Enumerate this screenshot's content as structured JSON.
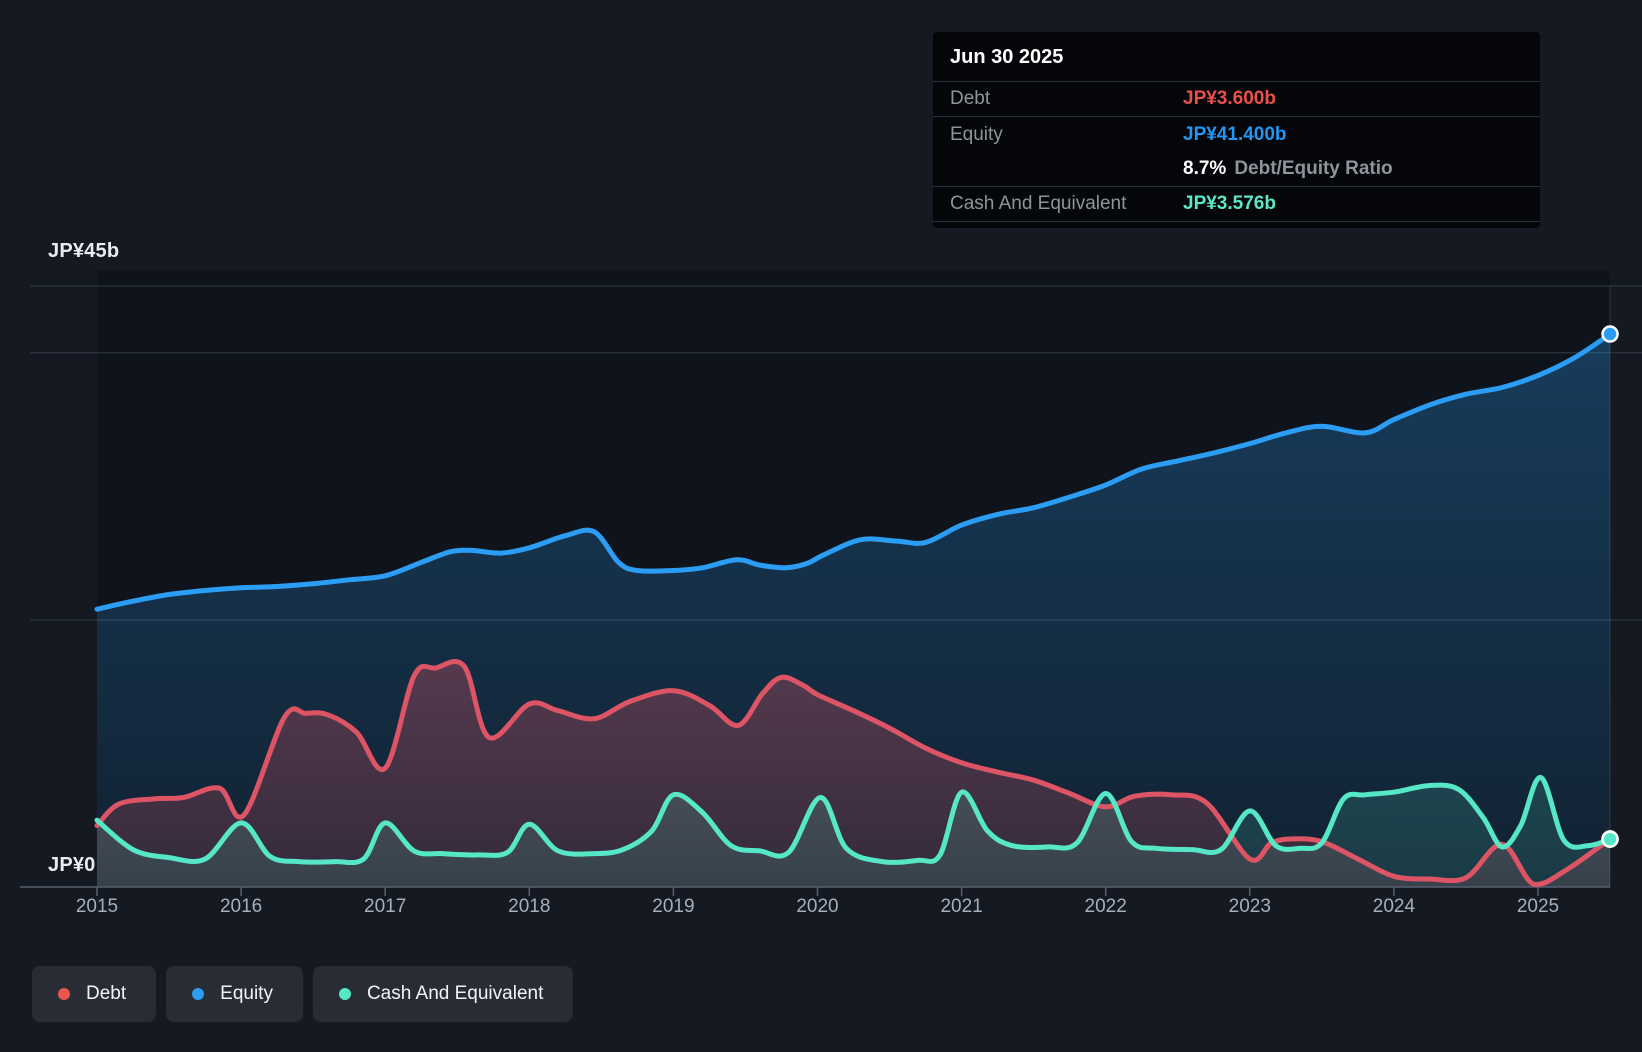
{
  "y_axis": {
    "top_label": "JP¥45b",
    "zero_label": "JP¥0"
  },
  "x_axis": {
    "tick_labels": [
      "2015",
      "2016",
      "2017",
      "2018",
      "2019",
      "2020",
      "2021",
      "2022",
      "2023",
      "2024",
      "2025"
    ]
  },
  "tooltip": {
    "title": "Jun 30 2025",
    "debt_label": "Debt",
    "debt_value": "JP¥3.600b",
    "equity_label": "Equity",
    "equity_value": "JP¥41.400b",
    "ratio_value": "8.7%",
    "ratio_label": "Debt/Equity Ratio",
    "cash_label": "Cash And Equivalent",
    "cash_value": "JP¥3.576b"
  },
  "legend": {
    "items": [
      {
        "label": "Debt",
        "color": "#e8564d"
      },
      {
        "label": "Equity",
        "color": "#2b9df4"
      },
      {
        "label": "Cash And Equivalent",
        "color": "#56e8c6"
      }
    ]
  },
  "colors": {
    "debt_line": "#dd5565",
    "equity_line": "#2b9df4",
    "cash_line": "#56e8c6",
    "tooltip_debt_value": "#e8504a",
    "tooltip_equity_value": "#2196f3",
    "tooltip_cash_value": "#5ce8c8",
    "gridline": "#343b46",
    "axis_line": "#566070",
    "plot_background": "#0f141c"
  },
  "chart_data": {
    "type": "area",
    "title": "Debt to Equity History",
    "x_unit": "year",
    "x_range": [
      2015.0,
      2025.5
    ],
    "ylim": [
      0,
      45
    ],
    "y_tick_values": [
      0,
      45
    ],
    "gridline_values": [
      45,
      40,
      20
    ],
    "legend_position": "bottom-left",
    "last_point_date": "Jun 30 2025",
    "series": [
      {
        "name": "Equity",
        "color": "#2b9df4",
        "fill_top": "rgba(43,157,244,0.30)",
        "fill_bottom": "rgba(43,157,244,0.10)",
        "end_value_b": 41.4,
        "points": [
          [
            2015.0,
            20.8
          ],
          [
            2015.25,
            21.4
          ],
          [
            2015.5,
            21.9
          ],
          [
            2015.75,
            22.2
          ],
          [
            2016.0,
            22.4
          ],
          [
            2016.25,
            22.5
          ],
          [
            2016.5,
            22.7
          ],
          [
            2016.75,
            23.0
          ],
          [
            2017.0,
            23.3
          ],
          [
            2017.25,
            24.3
          ],
          [
            2017.45,
            25.1
          ],
          [
            2017.6,
            25.2
          ],
          [
            2017.8,
            25.0
          ],
          [
            2018.0,
            25.4
          ],
          [
            2018.25,
            26.3
          ],
          [
            2018.45,
            26.6
          ],
          [
            2018.62,
            24.3
          ],
          [
            2018.75,
            23.7
          ],
          [
            2019.0,
            23.7
          ],
          [
            2019.2,
            23.9
          ],
          [
            2019.44,
            24.5
          ],
          [
            2019.6,
            24.1
          ],
          [
            2019.78,
            23.9
          ],
          [
            2019.92,
            24.2
          ],
          [
            2020.05,
            24.9
          ],
          [
            2020.3,
            26.0
          ],
          [
            2020.55,
            25.9
          ],
          [
            2020.75,
            25.8
          ],
          [
            2021.0,
            27.1
          ],
          [
            2021.25,
            27.9
          ],
          [
            2021.5,
            28.4
          ],
          [
            2021.75,
            29.2
          ],
          [
            2022.0,
            30.1
          ],
          [
            2022.25,
            31.3
          ],
          [
            2022.5,
            31.9
          ],
          [
            2022.75,
            32.5
          ],
          [
            2023.0,
            33.2
          ],
          [
            2023.25,
            34.0
          ],
          [
            2023.5,
            34.5
          ],
          [
            2023.8,
            34.0
          ],
          [
            2024.0,
            35.0
          ],
          [
            2024.25,
            36.1
          ],
          [
            2024.5,
            36.9
          ],
          [
            2024.75,
            37.4
          ],
          [
            2025.0,
            38.3
          ],
          [
            2025.25,
            39.6
          ],
          [
            2025.5,
            41.4
          ]
        ]
      },
      {
        "name": "Debt",
        "color": "#dd5565",
        "fill_top": "rgba(222,84,100,0.34)",
        "fill_bottom": "rgba(222,84,100,0.16)",
        "end_value_b": 3.6,
        "points": [
          [
            2015.0,
            4.6
          ],
          [
            2015.15,
            6.2
          ],
          [
            2015.4,
            6.6
          ],
          [
            2015.6,
            6.7
          ],
          [
            2015.85,
            7.4
          ],
          [
            2016.02,
            5.4
          ],
          [
            2016.3,
            12.7
          ],
          [
            2016.45,
            13.0
          ],
          [
            2016.6,
            12.9
          ],
          [
            2016.8,
            11.6
          ],
          [
            2017.0,
            8.9
          ],
          [
            2017.2,
            15.8
          ],
          [
            2017.35,
            16.4
          ],
          [
            2017.55,
            16.5
          ],
          [
            2017.72,
            11.2
          ],
          [
            2018.0,
            13.7
          ],
          [
            2018.2,
            13.2
          ],
          [
            2018.45,
            12.6
          ],
          [
            2018.7,
            13.9
          ],
          [
            2019.0,
            14.7
          ],
          [
            2019.25,
            13.6
          ],
          [
            2019.45,
            12.1
          ],
          [
            2019.62,
            14.5
          ],
          [
            2019.75,
            15.7
          ],
          [
            2019.9,
            15.1
          ],
          [
            2020.0,
            14.4
          ],
          [
            2020.25,
            13.2
          ],
          [
            2020.5,
            11.9
          ],
          [
            2020.75,
            10.4
          ],
          [
            2021.0,
            9.3
          ],
          [
            2021.25,
            8.6
          ],
          [
            2021.5,
            8.0
          ],
          [
            2021.75,
            7.0
          ],
          [
            2022.0,
            6.0
          ],
          [
            2022.2,
            6.8
          ],
          [
            2022.45,
            6.9
          ],
          [
            2022.7,
            6.3
          ],
          [
            2023.0,
            2.1
          ],
          [
            2023.15,
            3.3
          ],
          [
            2023.3,
            3.6
          ],
          [
            2023.5,
            3.4
          ],
          [
            2023.75,
            2.1
          ],
          [
            2024.0,
            0.8
          ],
          [
            2024.25,
            0.6
          ],
          [
            2024.5,
            0.7
          ],
          [
            2024.75,
            3.2
          ],
          [
            2024.97,
            0.2
          ],
          [
            2025.2,
            1.3
          ],
          [
            2025.5,
            3.6
          ]
        ]
      },
      {
        "name": "Cash And Equivalent",
        "color": "#56e8c6",
        "fill_top": "rgba(86,232,198,0.20)",
        "fill_bottom": "rgba(86,232,198,0.12)",
        "end_value_b": 3.576,
        "points": [
          [
            2015.0,
            5.0
          ],
          [
            2015.25,
            2.8
          ],
          [
            2015.5,
            2.2
          ],
          [
            2015.75,
            2.1
          ],
          [
            2016.0,
            4.8
          ],
          [
            2016.2,
            2.3
          ],
          [
            2016.4,
            1.9
          ],
          [
            2016.65,
            1.9
          ],
          [
            2016.85,
            2.1
          ],
          [
            2017.0,
            4.8
          ],
          [
            2017.2,
            2.7
          ],
          [
            2017.4,
            2.5
          ],
          [
            2017.65,
            2.4
          ],
          [
            2017.85,
            2.6
          ],
          [
            2018.0,
            4.7
          ],
          [
            2018.2,
            2.7
          ],
          [
            2018.45,
            2.5
          ],
          [
            2018.65,
            2.8
          ],
          [
            2018.85,
            4.2
          ],
          [
            2019.0,
            6.9
          ],
          [
            2019.2,
            5.6
          ],
          [
            2019.4,
            3.1
          ],
          [
            2019.6,
            2.7
          ],
          [
            2019.8,
            2.6
          ],
          [
            2020.02,
            6.7
          ],
          [
            2020.2,
            2.9
          ],
          [
            2020.45,
            1.9
          ],
          [
            2020.7,
            2.0
          ],
          [
            2020.85,
            2.4
          ],
          [
            2021.0,
            7.1
          ],
          [
            2021.18,
            4.2
          ],
          [
            2021.35,
            3.1
          ],
          [
            2021.6,
            3.0
          ],
          [
            2021.8,
            3.3
          ],
          [
            2022.0,
            7.0
          ],
          [
            2022.18,
            3.4
          ],
          [
            2022.35,
            2.9
          ],
          [
            2022.6,
            2.8
          ],
          [
            2022.8,
            2.8
          ],
          [
            2023.0,
            5.7
          ],
          [
            2023.18,
            3.1
          ],
          [
            2023.35,
            2.9
          ],
          [
            2023.5,
            3.3
          ],
          [
            2023.65,
            6.6
          ],
          [
            2023.8,
            6.9
          ],
          [
            2024.0,
            7.1
          ],
          [
            2024.25,
            7.6
          ],
          [
            2024.45,
            7.3
          ],
          [
            2024.62,
            5.2
          ],
          [
            2024.75,
            3.0
          ],
          [
            2024.88,
            4.6
          ],
          [
            2025.02,
            8.2
          ],
          [
            2025.18,
            3.5
          ],
          [
            2025.35,
            3.1
          ],
          [
            2025.5,
            3.576
          ]
        ]
      }
    ]
  }
}
